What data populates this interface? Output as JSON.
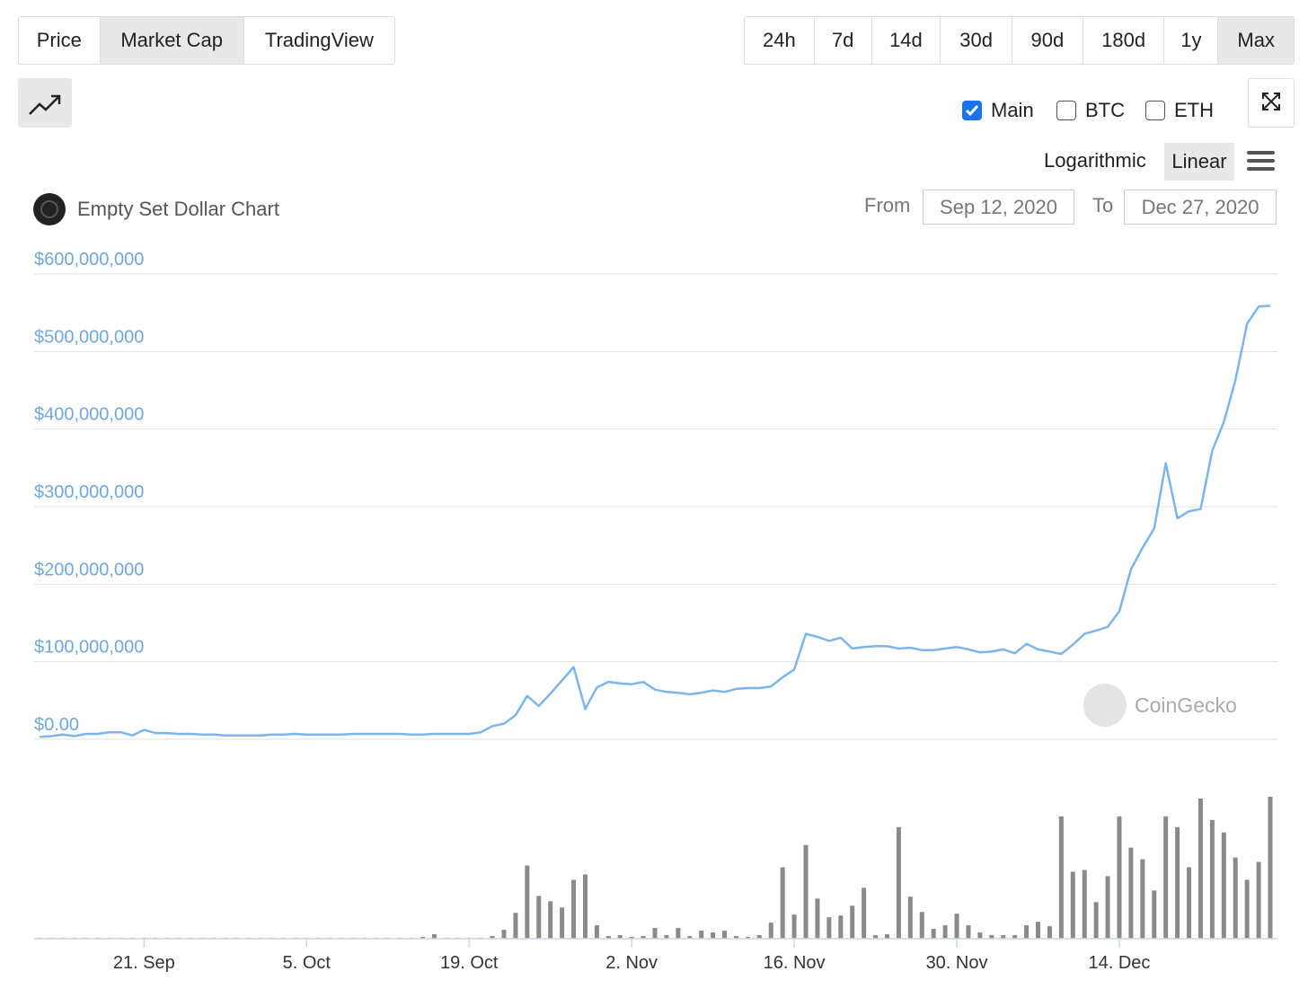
{
  "ui": {
    "tabs": [
      "Price",
      "Market Cap",
      "TradingView"
    ],
    "ranges": [
      "24h",
      "7d",
      "14d",
      "30d",
      "90d",
      "180d",
      "1y",
      "Max"
    ],
    "toggles": [
      "Main",
      "BTC",
      "ETH"
    ],
    "scales": [
      "Logarithmic",
      "Linear"
    ],
    "chart_name": "Empty Set Dollar Chart",
    "from_label": "From",
    "from": "Sep 12, 2020",
    "to_label": "To",
    "to": "Dec 27, 2020",
    "watermark": "CoinGecko"
  },
  "chart_data": [
    {
      "type": "line",
      "x": [
        "12. Sep",
        "13. Sep",
        "14. Sep",
        "15. Sep",
        "16. Sep",
        "17. Sep",
        "18. Sep",
        "19. Sep",
        "20. Sep",
        "21. Sep",
        "22. Sep",
        "23. Sep",
        "24. Sep",
        "25. Sep",
        "26. Sep",
        "27. Sep",
        "28. Sep",
        "29. Sep",
        "30. Sep",
        "1. Oct",
        "2. Oct",
        "3. Oct",
        "4. Oct",
        "5. Oct",
        "6. Oct",
        "7. Oct",
        "8. Oct",
        "9. Oct",
        "10. Oct",
        "11. Oct",
        "12. Oct",
        "13. Oct",
        "14. Oct",
        "15. Oct",
        "16. Oct",
        "17. Oct",
        "18. Oct",
        "19. Oct",
        "20. Oct",
        "21. Oct",
        "22. Oct",
        "23. Oct",
        "24. Oct",
        "25. Oct",
        "26. Oct",
        "27. Oct",
        "28. Oct",
        "29. Oct",
        "30. Oct",
        "31. Oct",
        "1. Nov",
        "2. Nov",
        "3. Nov",
        "4. Nov",
        "5. Nov",
        "6. Nov",
        "7. Nov",
        "8. Nov",
        "9. Nov",
        "10. Nov",
        "11. Nov",
        "12. Nov",
        "13. Nov",
        "14. Nov",
        "15. Nov",
        "16. Nov",
        "17. Nov",
        "18. Nov",
        "19. Nov",
        "20. Nov",
        "21. Nov",
        "22. Nov",
        "23. Nov",
        "24. Nov",
        "25. Nov",
        "26. Nov",
        "27. Nov",
        "28. Nov",
        "29. Nov",
        "30. Nov",
        "1. Dec",
        "2. Dec",
        "3. Dec",
        "4. Dec",
        "5. Dec",
        "6. Dec",
        "7. Dec",
        "8. Dec",
        "9. Dec",
        "10. Dec",
        "11. Dec",
        "12. Dec",
        "13. Dec",
        "14. Dec",
        "15. Dec",
        "16. Dec",
        "17. Dec",
        "18. Dec",
        "19. Dec",
        "20. Dec",
        "21. Dec",
        "22. Dec",
        "23. Dec",
        "24. Dec",
        "25. Dec",
        "26. Dec",
        "27. Dec"
      ],
      "xticks": [
        "21. Sep",
        "5. Oct",
        "19. Oct",
        "2. Nov",
        "16. Nov",
        "30. Nov",
        "14. Dec"
      ],
      "series": [
        {
          "name": "Market Cap",
          "color": "#7cb5ec",
          "values": [
            3000000,
            4000000,
            6000000,
            4000000,
            7000000,
            7000000,
            9000000,
            9000000,
            5000000,
            12000000,
            8000000,
            8000000,
            7000000,
            7000000,
            6000000,
            6000000,
            5000000,
            5000000,
            5000000,
            5000000,
            6000000,
            6000000,
            7000000,
            6000000,
            6000000,
            6000000,
            6000000,
            7000000,
            7000000,
            7000000,
            7000000,
            7000000,
            6000000,
            6000000,
            7000000,
            7000000,
            7000000,
            7000000,
            9000000,
            17000000,
            20000000,
            31000000,
            56000000,
            43000000,
            59000000,
            76000000,
            93000000,
            39000000,
            67000000,
            74000000,
            72000000,
            71000000,
            74000000,
            64000000,
            61000000,
            60000000,
            58000000,
            60000000,
            63000000,
            61000000,
            65000000,
            66000000,
            66000000,
            68000000,
            80000000,
            90000000,
            136000000,
            132000000,
            127000000,
            131000000,
            117000000,
            119000000,
            120000000,
            120000000,
            117000000,
            118000000,
            115000000,
            115000000,
            117000000,
            119000000,
            116000000,
            112000000,
            113000000,
            116000000,
            111000000,
            123000000,
            116000000,
            113000000,
            110000000,
            122000000,
            136000000,
            140000000,
            145000000,
            165000000,
            219000000,
            247000000,
            272000000,
            356000000,
            285000000,
            294000000,
            297000000,
            372000000,
            409000000,
            463000000,
            536000000,
            558000000,
            559000000
          ]
        }
      ],
      "ylim": [
        0,
        600000000
      ],
      "yticks": [
        {
          "value": 0,
          "label": "$0.00"
        },
        {
          "value": 100000000,
          "label": "$100,000,000"
        },
        {
          "value": 200000000,
          "label": "$200,000,000"
        },
        {
          "value": 300000000,
          "label": "$300,000,000"
        },
        {
          "value": 400000000,
          "label": "$400,000,000"
        },
        {
          "value": 500000000,
          "label": "$500,000,000"
        },
        {
          "value": 600000000,
          "label": "$600,000,000"
        }
      ],
      "grid": true
    },
    {
      "type": "bar",
      "color": "#8a8a8a",
      "ylim": [
        0,
        160
      ],
      "values": [
        1,
        1,
        1,
        1,
        1,
        1,
        1,
        1,
        1,
        1,
        1,
        1,
        1,
        1,
        1,
        1,
        1,
        1,
        1,
        1,
        1,
        1,
        1,
        1,
        1,
        1,
        1,
        1,
        1,
        1,
        1,
        1,
        1,
        2,
        5,
        1,
        1,
        1,
        1,
        3,
        10,
        29,
        82,
        48,
        42,
        35,
        66,
        72,
        15,
        3,
        4,
        2,
        3,
        12,
        4,
        12,
        3,
        9,
        7,
        9,
        3,
        2,
        4,
        18,
        80,
        27,
        105,
        45,
        24,
        26,
        37,
        57,
        4,
        5,
        125,
        47,
        30,
        11,
        15,
        28,
        15,
        7,
        4,
        4,
        4,
        15,
        19,
        14,
        137,
        75,
        77,
        41,
        70,
        137,
        102,
        89,
        54,
        137,
        125,
        80,
        157,
        133,
        119,
        91,
        66,
        86,
        159
      ]
    }
  ]
}
